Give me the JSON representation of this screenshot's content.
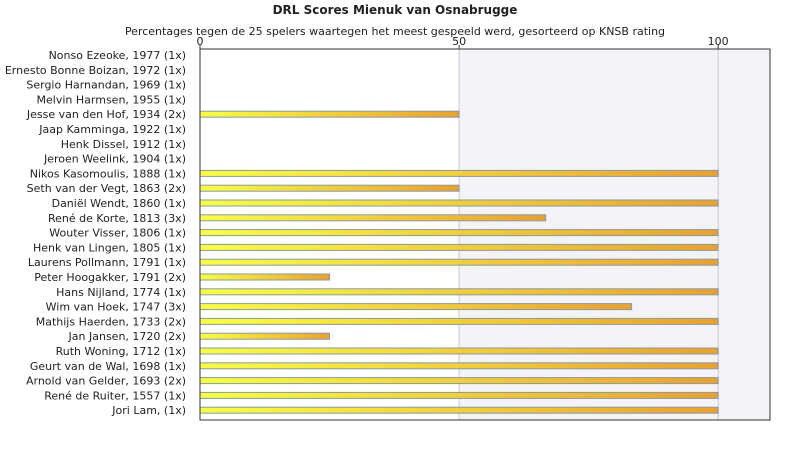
{
  "chart_data": {
    "type": "bar",
    "orientation": "horizontal",
    "title": "DRL Scores Mienuk van Osnabrugge",
    "subtitle": "Percentages tegen de 25 spelers waartegen het meest gespeeld werd, gesorteerd op KNSB rating",
    "xlim": [
      0,
      110
    ],
    "x_ticks": [
      "0",
      "50",
      "100"
    ],
    "grid": true,
    "colors": {
      "bar_start": "#ffff33",
      "bar_end": "#f0a020",
      "bar_border": "#7a9ac8",
      "plot_border": "#333333",
      "band": "#f3f3f8",
      "grid": "#cccccc"
    },
    "categories": [
      "Nonso Ezeoke, 1977 (1x)",
      "Ernesto Bonne Boizan, 1972 (1x)",
      "Sergio Harnandan, 1969 (1x)",
      "Melvin Harmsen, 1955 (1x)",
      "Jesse van den Hof, 1934 (2x)",
      "Jaap Kamminga, 1922 (1x)",
      "Henk Dissel, 1912 (1x)",
      "Jeroen Weelink, 1904 (1x)",
      "Nikos Kasomoulis, 1888 (1x)",
      "Seth van der Vegt, 1863 (2x)",
      "Daniël Wendt, 1860 (1x)",
      "René de Korte, 1813 (3x)",
      "Wouter Visser, 1806 (1x)",
      "Henk van Lingen, 1805 (1x)",
      "Laurens Pollmann, 1791 (1x)",
      "Peter Hoogakker, 1791 (2x)",
      "Hans Nijland, 1774 (1x)",
      "Wim van Hoek, 1747 (3x)",
      "Mathijs Haerden, 1733 (2x)",
      "Jan Jansen, 1720 (2x)",
      "Ruth Woning, 1712 (1x)",
      "Geurt van de Wal, 1698 (1x)",
      "Arnold van Gelder, 1693 (2x)",
      "René de Ruiter, 1557 (1x)",
      "Jori Lam,  (1x)"
    ],
    "values": [
      0,
      0,
      0,
      0,
      50,
      0,
      0,
      0,
      100,
      50,
      100,
      66.7,
      100,
      100,
      100,
      25,
      100,
      83.3,
      100,
      25,
      100,
      100,
      100,
      100,
      100
    ]
  }
}
